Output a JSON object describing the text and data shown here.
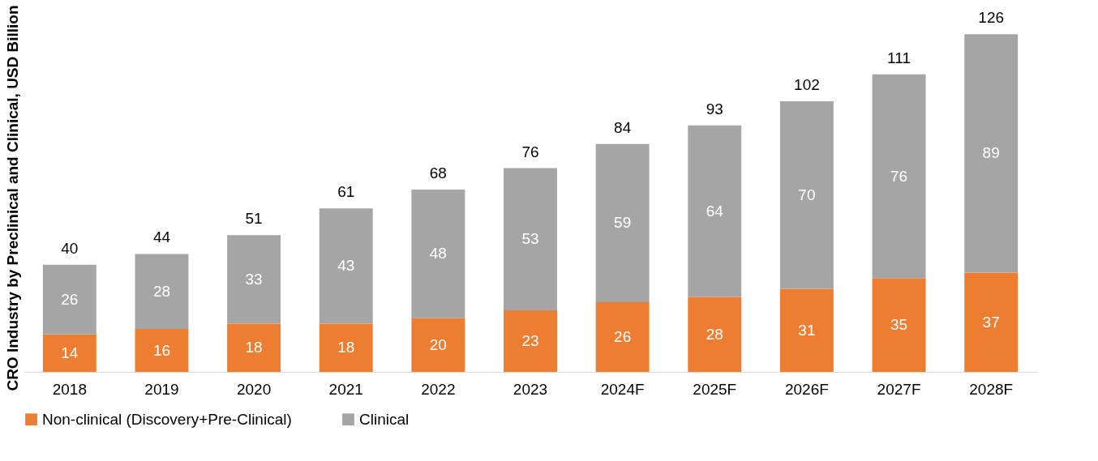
{
  "chart_data": {
    "type": "bar",
    "stacked": true,
    "ylabel": "CRO Industry by Preclinical and Clinical, USD Billion",
    "categories": [
      "2018",
      "2019",
      "2020",
      "2021",
      "2022",
      "2023",
      "2024F",
      "2025F",
      "2026F",
      "2027F",
      "2028F"
    ],
    "series": [
      {
        "name": "Non-clinical (Discovery+Pre-Clinical)",
        "color": "#ed7d31",
        "values": [
          14,
          16,
          18,
          18,
          20,
          23,
          26,
          28,
          31,
          35,
          37
        ]
      },
      {
        "name": "Clinical",
        "color": "#a5a5a5",
        "values": [
          26,
          28,
          33,
          43,
          48,
          53,
          59,
          64,
          70,
          76,
          89
        ]
      }
    ],
    "totals": [
      "40",
      "44",
      "51",
      "61",
      "68",
      "76",
      "84",
      "93",
      "102",
      "111",
      "126"
    ],
    "data_labels": true,
    "legend": "bottom",
    "grid": false,
    "tick_labels": "x"
  }
}
